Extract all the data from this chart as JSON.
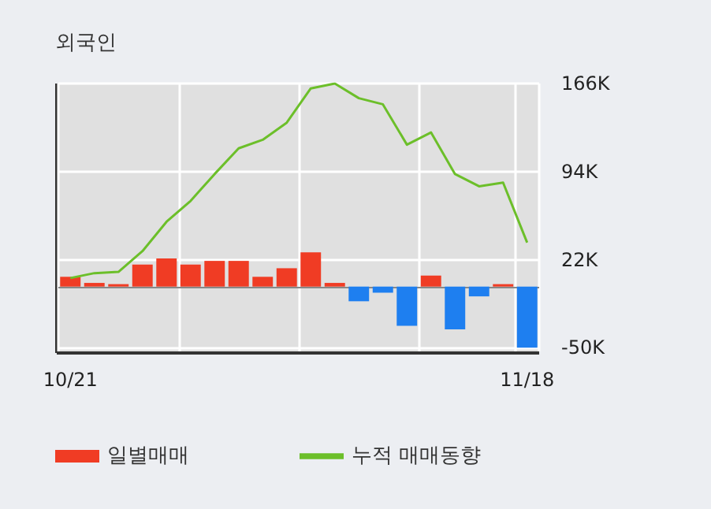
{
  "chart_data": {
    "type": "bar",
    "title": "외국인",
    "categories": [
      "10/21",
      null,
      null,
      null,
      null,
      null,
      null,
      null,
      null,
      null,
      null,
      null,
      null,
      null,
      null,
      null,
      null,
      null,
      null,
      "11/18"
    ],
    "series": [
      {
        "name": "일별매매",
        "colors": [
          "#f03c24",
          "#f03c24",
          "#f03c24",
          "#f03c24",
          "#f03c24",
          "#f03c24",
          "#f03c24",
          "#f03c24",
          "#f03c24",
          "#f03c24",
          "#f03c24",
          "#f03c24",
          "#1e7ff0",
          "#1e7ff0",
          "#1e7ff0",
          "#f03c24",
          "#1e7ff0",
          "#1e7ff0",
          "#f03c24",
          "#1e7ff0"
        ],
        "values": [
          8,
          3,
          2,
          18,
          23,
          18,
          21,
          21,
          8,
          15,
          28,
          3,
          -12,
          -5,
          -32,
          9,
          -35,
          -8,
          2,
          -50
        ]
      },
      {
        "name": "누적 매매동향",
        "type": "line",
        "color": "#6cbf2a",
        "values": [
          7,
          11,
          12,
          29,
          53,
          70,
          92,
          113,
          120,
          134,
          162,
          166,
          154,
          149,
          116,
          126,
          92,
          82,
          85,
          36
        ]
      }
    ],
    "ylim": [
      -53,
      166
    ],
    "yticks": [
      {
        "value": -50,
        "label": "-50K"
      },
      {
        "value": 22,
        "label": "22K"
      },
      {
        "value": 94,
        "label": "94K"
      },
      {
        "value": 166,
        "label": "166K"
      }
    ],
    "grid": true,
    "legend": "bottom",
    "marker": "none"
  }
}
